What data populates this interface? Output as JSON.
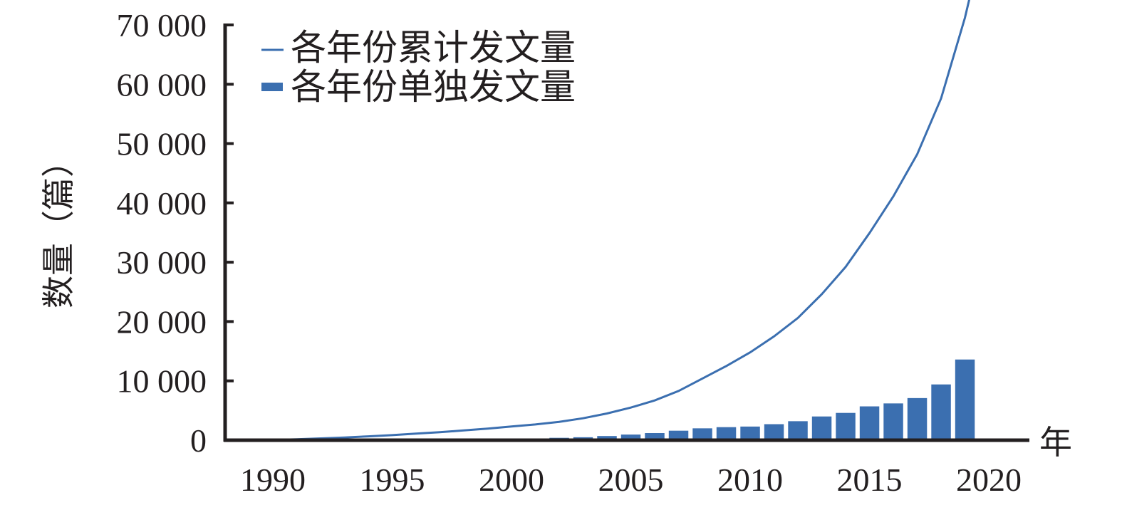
{
  "colors": {
    "series": "#3b6fb0",
    "axis": "#231f20",
    "text": "#231f20"
  },
  "chart_data": {
    "type": "bar",
    "title": "",
    "xlabel": "年",
    "ylabel": "数量（篇）",
    "xlim": [
      1988,
      2021.7
    ],
    "ylim": [
      0,
      70000
    ],
    "x_ticks": [
      "1990",
      "1995",
      "2000",
      "2005",
      "2010",
      "2015",
      "2020"
    ],
    "y_ticks": [
      "0",
      "10 000",
      "20 000",
      "30 000",
      "40 000",
      "50 000",
      "60 000",
      "70 000"
    ],
    "legend_position": "top-left",
    "series": [
      {
        "name": "各年份累计发文量",
        "type": "line",
        "x": [
          1990,
          1991,
          1992,
          1993,
          1994,
          1995,
          1996,
          1997,
          1998,
          1999,
          2000,
          2001,
          2002,
          2003,
          2004,
          2005,
          2006,
          2007,
          2008,
          2009,
          2010,
          2011,
          2012,
          2013,
          2014,
          2015,
          2016,
          2017,
          2018,
          2019,
          2019.4
        ],
        "values": [
          50,
          150,
          300,
          450,
          650,
          850,
          1100,
          1350,
          1650,
          1950,
          2300,
          2650,
          3100,
          3700,
          4500,
          5500,
          6700,
          8300,
          10400,
          12500,
          14800,
          17500,
          20600,
          24600,
          29200,
          34900,
          41100,
          48200,
          57600,
          71200,
          78000
        ]
      },
      {
        "name": "各年份单独发文量",
        "type": "bar",
        "x": [
          1990,
          1991,
          1992,
          1993,
          1994,
          1995,
          1996,
          1997,
          1998,
          1999,
          2000,
          2001,
          2002,
          2003,
          2004,
          2005,
          2006,
          2007,
          2008,
          2009,
          2010,
          2011,
          2012,
          2013,
          2014,
          2015,
          2016,
          2017,
          2018,
          2019
        ],
        "values": [
          30,
          40,
          50,
          60,
          70,
          80,
          100,
          120,
          140,
          170,
          200,
          300,
          400,
          500,
          700,
          950,
          1200,
          1600,
          2000,
          2200,
          2300,
          2700,
          3200,
          4000,
          4600,
          5700,
          6200,
          7100,
          9400,
          13600
        ]
      }
    ]
  }
}
